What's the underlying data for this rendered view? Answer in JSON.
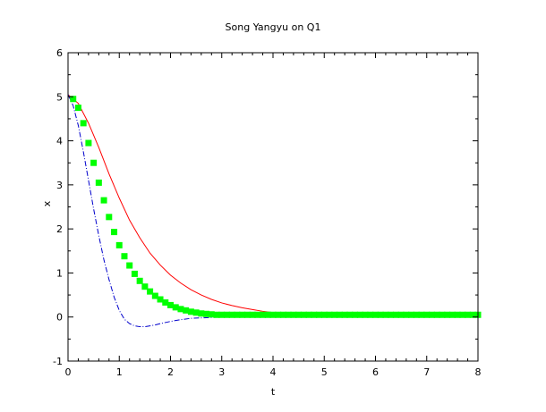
{
  "chart_data": {
    "type": "line",
    "title": "Song Yangyu on Q1",
    "xlabel": "t",
    "ylabel": "x",
    "xlim": [
      0,
      8
    ],
    "ylim": [
      -1,
      6
    ],
    "xticks": [
      "0",
      "1",
      "2",
      "3",
      "4",
      "5",
      "6",
      "7",
      "8"
    ],
    "yticks": [
      "-1",
      "0",
      "1",
      "2",
      "3",
      "4",
      "5",
      "6"
    ],
    "grid": false,
    "legend": "none",
    "series": [
      {
        "style": "solid-line",
        "color": "#ff0000",
        "x": [
          0,
          0.2,
          0.4,
          0.6,
          0.8,
          1.0,
          1.2,
          1.4,
          1.6,
          1.8,
          2.0,
          2.2,
          2.4,
          2.6,
          2.8,
          3.0,
          3.2,
          3.4,
          3.6,
          3.8,
          4.0,
          4.2,
          4.4,
          4.6,
          5.0,
          6.0,
          7.0,
          8.0
        ],
        "y": [
          5.05,
          4.85,
          4.4,
          3.85,
          3.25,
          2.7,
          2.2,
          1.8,
          1.45,
          1.18,
          0.95,
          0.77,
          0.62,
          0.5,
          0.4,
          0.32,
          0.26,
          0.21,
          0.17,
          0.13,
          0.1,
          0.07,
          0.05,
          0.03,
          0.01,
          0,
          0,
          0
        ]
      },
      {
        "style": "dash-dot-line",
        "color": "#0000cc",
        "x": [
          0,
          0.1,
          0.2,
          0.3,
          0.4,
          0.5,
          0.6,
          0.7,
          0.8,
          0.9,
          1.0,
          1.1,
          1.2,
          1.3,
          1.4,
          1.5,
          1.6,
          1.7,
          1.8,
          2.0,
          2.2,
          2.4,
          2.6,
          2.8,
          3.0,
          3.5,
          4.0,
          5.0,
          6.0,
          7.0,
          8.0
        ],
        "y": [
          5.05,
          4.8,
          4.35,
          3.75,
          3.1,
          2.45,
          1.85,
          1.3,
          0.85,
          0.45,
          0.15,
          -0.05,
          -0.15,
          -0.2,
          -0.22,
          -0.22,
          -0.2,
          -0.18,
          -0.15,
          -0.1,
          -0.06,
          -0.03,
          -0.02,
          -0.01,
          0,
          0,
          0,
          0,
          0,
          0,
          0
        ]
      },
      {
        "style": "square-markers",
        "color": "#00ff00",
        "x": [
          0.1,
          0.2,
          0.3,
          0.4,
          0.5,
          0.6,
          0.7,
          0.8,
          0.9,
          1.0,
          1.1,
          1.2,
          1.3,
          1.4,
          1.5,
          1.6,
          1.7,
          1.8,
          1.9,
          2.0,
          2.1,
          2.2,
          2.3,
          2.4,
          2.5,
          2.6,
          2.7,
          2.8,
          2.9,
          3.0,
          3.1,
          3.2,
          3.3,
          3.4,
          3.5,
          3.6,
          3.7,
          3.8,
          3.9,
          4.0,
          4.1,
          4.2,
          4.3,
          4.4,
          4.5,
          4.6,
          4.7,
          4.8,
          4.9,
          5.0,
          5.1,
          5.2,
          5.3,
          5.4,
          5.5,
          5.6,
          5.7,
          5.8,
          5.9,
          6.0,
          6.1,
          6.2,
          6.3,
          6.4,
          6.5,
          6.6,
          6.7,
          6.8,
          6.9,
          7.0,
          7.1,
          7.2,
          7.3,
          7.4,
          7.5,
          7.6,
          7.7,
          7.8,
          7.9,
          8.0
        ],
        "y": [
          4.95,
          4.75,
          4.4,
          3.95,
          3.5,
          3.05,
          2.65,
          2.27,
          1.93,
          1.63,
          1.38,
          1.17,
          0.98,
          0.82,
          0.69,
          0.58,
          0.48,
          0.4,
          0.33,
          0.27,
          0.22,
          0.18,
          0.15,
          0.12,
          0.1,
          0.08,
          0.07,
          0.06,
          0.05,
          0.05,
          0.05,
          0.05,
          0.05,
          0.05,
          0.05,
          0.05,
          0.05,
          0.05,
          0.05,
          0.05,
          0.05,
          0.05,
          0.05,
          0.05,
          0.05,
          0.05,
          0.05,
          0.05,
          0.05,
          0.05,
          0.05,
          0.05,
          0.05,
          0.05,
          0.05,
          0.05,
          0.05,
          0.05,
          0.05,
          0.05,
          0.05,
          0.05,
          0.05,
          0.05,
          0.05,
          0.05,
          0.05,
          0.05,
          0.05,
          0.05,
          0.05,
          0.05,
          0.05,
          0.05,
          0.05,
          0.05,
          0.05,
          0.05,
          0.05,
          0.05
        ]
      }
    ]
  }
}
